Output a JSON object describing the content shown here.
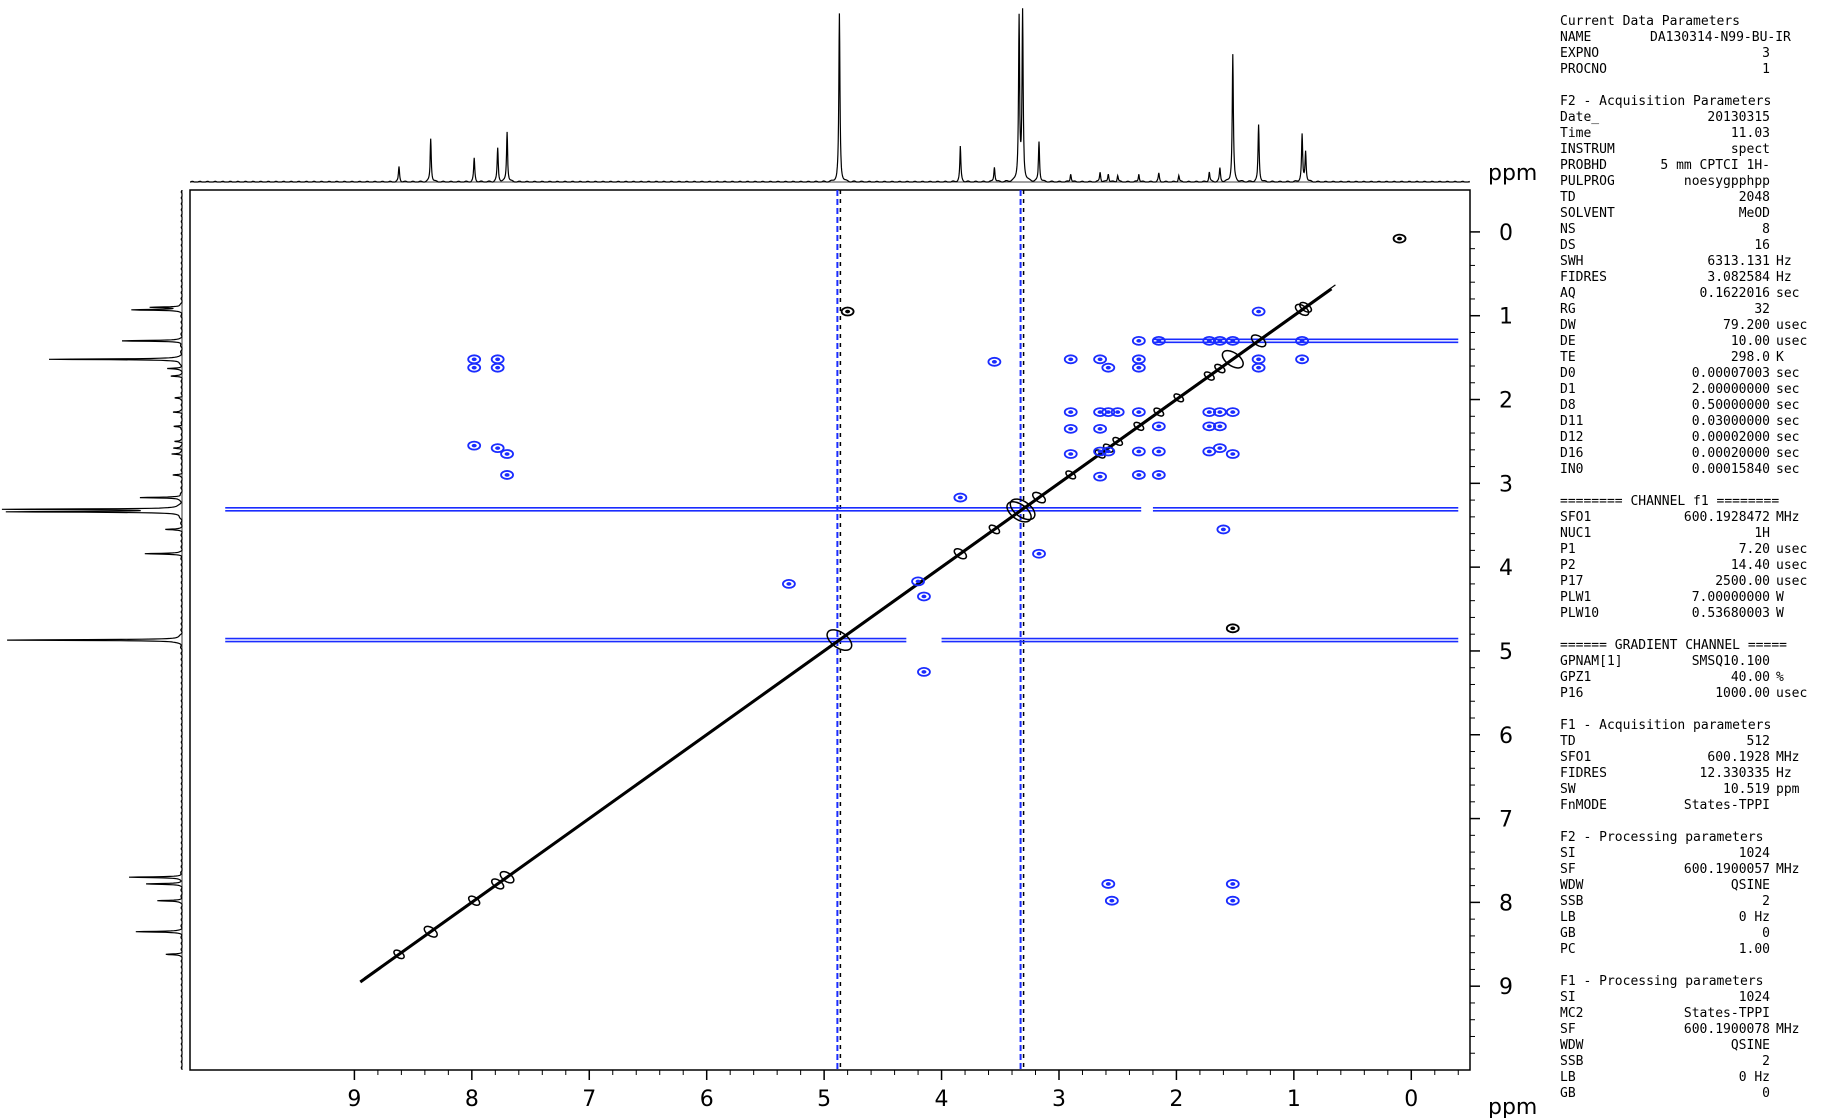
{
  "chart_data": {
    "type": "heatmap",
    "subtype": "2D NMR NOESY contour plot with 1D projections",
    "x_axis": {
      "label": "ppm",
      "range": [
        10.4,
        -0.5
      ],
      "reversed": true,
      "ticks": [
        9,
        8,
        7,
        6,
        5,
        4,
        3,
        2,
        1,
        0
      ]
    },
    "y_axis": {
      "label": "ppm",
      "range": [
        -0.5,
        10.0
      ],
      "reversed": true,
      "ticks": [
        0,
        1,
        2,
        3,
        4,
        5,
        6,
        7,
        8,
        9
      ]
    },
    "colors": {
      "positive": "#000000",
      "negative": "#1a2cff"
    },
    "projection_peaks": [
      {
        "ppm": 8.62,
        "height": 0.09
      },
      {
        "ppm": 8.35,
        "height": 0.26
      },
      {
        "ppm": 7.98,
        "height": 0.14
      },
      {
        "ppm": 7.78,
        "height": 0.2
      },
      {
        "ppm": 7.7,
        "height": 0.3
      },
      {
        "ppm": 4.87,
        "height": 1.0
      },
      {
        "ppm": 3.84,
        "height": 0.21
      },
      {
        "ppm": 3.55,
        "height": 0.09
      },
      {
        "ppm": 3.34,
        "height": 0.97
      },
      {
        "ppm": 3.31,
        "height": 1.0
      },
      {
        "ppm": 3.17,
        "height": 0.24
      },
      {
        "ppm": 2.9,
        "height": 0.05
      },
      {
        "ppm": 2.65,
        "height": 0.06
      },
      {
        "ppm": 2.58,
        "height": 0.05
      },
      {
        "ppm": 2.5,
        "height": 0.04
      },
      {
        "ppm": 2.32,
        "height": 0.05
      },
      {
        "ppm": 2.15,
        "height": 0.05
      },
      {
        "ppm": 1.98,
        "height": 0.04
      },
      {
        "ppm": 1.72,
        "height": 0.06
      },
      {
        "ppm": 1.63,
        "height": 0.08
      },
      {
        "ppm": 1.52,
        "height": 0.76
      },
      {
        "ppm": 1.3,
        "height": 0.34
      },
      {
        "ppm": 0.93,
        "height": 0.28
      },
      {
        "ppm": 0.9,
        "height": 0.18
      }
    ],
    "solvent_lines": [
      {
        "ppm": 4.87,
        "color": "#1a2cff"
      },
      {
        "ppm": 3.31,
        "color": "#1a2cff"
      }
    ],
    "diagonal_range": [
      8.95,
      0.68
    ],
    "cross_peaks": [
      {
        "x": 7.98,
        "y": 1.52,
        "sign": "neg"
      },
      {
        "x": 7.78,
        "y": 1.52,
        "sign": "neg"
      },
      {
        "x": 7.98,
        "y": 1.62,
        "sign": "neg"
      },
      {
        "x": 7.78,
        "y": 1.62,
        "sign": "neg"
      },
      {
        "x": 7.98,
        "y": 2.55,
        "sign": "neg"
      },
      {
        "x": 7.78,
        "y": 2.58,
        "sign": "neg"
      },
      {
        "x": 7.7,
        "y": 2.65,
        "sign": "neg"
      },
      {
        "x": 7.7,
        "y": 2.9,
        "sign": "neg"
      },
      {
        "x": 3.55,
        "y": 1.55,
        "sign": "neg"
      },
      {
        "x": 3.84,
        "y": 3.17,
        "sign": "neg"
      },
      {
        "x": 3.17,
        "y": 3.84,
        "sign": "neg"
      },
      {
        "x": 4.2,
        "y": 4.17,
        "sign": "neg"
      },
      {
        "x": 4.15,
        "y": 4.35,
        "sign": "neg"
      },
      {
        "x": 5.3,
        "y": 4.2,
        "sign": "neg"
      },
      {
        "x": 4.15,
        "y": 5.25,
        "sign": "neg"
      },
      {
        "x": 2.9,
        "y": 1.52,
        "sign": "neg"
      },
      {
        "x": 2.65,
        "y": 1.52,
        "sign": "neg"
      },
      {
        "x": 2.58,
        "y": 1.62,
        "sign": "neg"
      },
      {
        "x": 2.32,
        "y": 1.3,
        "sign": "neg"
      },
      {
        "x": 2.32,
        "y": 1.52,
        "sign": "neg"
      },
      {
        "x": 2.32,
        "y": 1.62,
        "sign": "neg"
      },
      {
        "x": 2.15,
        "y": 1.3,
        "sign": "neg"
      },
      {
        "x": 2.9,
        "y": 2.15,
        "sign": "neg"
      },
      {
        "x": 2.65,
        "y": 2.15,
        "sign": "neg"
      },
      {
        "x": 2.58,
        "y": 2.15,
        "sign": "neg"
      },
      {
        "x": 2.5,
        "y": 2.15,
        "sign": "neg"
      },
      {
        "x": 2.32,
        "y": 2.15,
        "sign": "neg"
      },
      {
        "x": 2.15,
        "y": 2.32,
        "sign": "neg"
      },
      {
        "x": 2.9,
        "y": 2.35,
        "sign": "neg"
      },
      {
        "x": 2.65,
        "y": 2.35,
        "sign": "neg"
      },
      {
        "x": 2.9,
        "y": 2.65,
        "sign": "neg"
      },
      {
        "x": 2.65,
        "y": 2.62,
        "sign": "neg"
      },
      {
        "x": 2.58,
        "y": 2.62,
        "sign": "neg"
      },
      {
        "x": 2.32,
        "y": 2.62,
        "sign": "neg"
      },
      {
        "x": 2.15,
        "y": 2.62,
        "sign": "neg"
      },
      {
        "x": 2.65,
        "y": 2.92,
        "sign": "neg"
      },
      {
        "x": 2.32,
        "y": 2.9,
        "sign": "neg"
      },
      {
        "x": 2.15,
        "y": 2.9,
        "sign": "neg"
      },
      {
        "x": 1.72,
        "y": 1.3,
        "sign": "neg"
      },
      {
        "x": 1.63,
        "y": 1.3,
        "sign": "neg"
      },
      {
        "x": 1.52,
        "y": 1.3,
        "sign": "neg"
      },
      {
        "x": 1.3,
        "y": 0.95,
        "sign": "neg"
      },
      {
        "x": 1.3,
        "y": 1.52,
        "sign": "neg"
      },
      {
        "x": 1.3,
        "y": 1.62,
        "sign": "neg"
      },
      {
        "x": 1.72,
        "y": 2.15,
        "sign": "neg"
      },
      {
        "x": 1.63,
        "y": 2.15,
        "sign": "neg"
      },
      {
        "x": 1.52,
        "y": 2.15,
        "sign": "neg"
      },
      {
        "x": 1.72,
        "y": 2.32,
        "sign": "neg"
      },
      {
        "x": 1.63,
        "y": 2.32,
        "sign": "neg"
      },
      {
        "x": 1.72,
        "y": 2.62,
        "sign": "neg"
      },
      {
        "x": 1.63,
        "y": 2.58,
        "sign": "neg"
      },
      {
        "x": 1.52,
        "y": 2.65,
        "sign": "neg"
      },
      {
        "x": 0.93,
        "y": 1.3,
        "sign": "neg"
      },
      {
        "x": 0.93,
        "y": 1.52,
        "sign": "neg"
      },
      {
        "x": 2.58,
        "y": 7.78,
        "sign": "neg"
      },
      {
        "x": 2.55,
        "y": 7.98,
        "sign": "neg"
      },
      {
        "x": 1.52,
        "y": 7.78,
        "sign": "neg"
      },
      {
        "x": 1.52,
        "y": 7.98,
        "sign": "neg"
      },
      {
        "x": 0.1,
        "y": 0.08,
        "sign": "pos"
      },
      {
        "x": 4.8,
        "y": 0.95,
        "sign": "pos"
      },
      {
        "x": 1.52,
        "y": 4.73,
        "sign": "pos"
      },
      {
        "x": 1.6,
        "y": 3.55,
        "sign": "neg"
      }
    ],
    "row_streaks": [
      {
        "y": 3.31,
        "x_from": 10.1,
        "x_to": 2.3
      },
      {
        "y": 3.31,
        "x_from": 2.2,
        "x_to": -0.4
      },
      {
        "y": 4.87,
        "x_from": 10.1,
        "x_to": 4.3
      },
      {
        "y": 4.87,
        "x_from": 4.0,
        "x_to": -0.4
      },
      {
        "y": 1.3,
        "x_from": 2.2,
        "x_to": -0.4
      }
    ]
  },
  "parameters": [
    {
      "title": "Current Data Parameters",
      "rows": [
        {
          "k": "NAME",
          "v": "DA130314-N99-BU-IR",
          "u": ""
        },
        {
          "k": "EXPNO",
          "v": "3",
          "u": ""
        },
        {
          "k": "PROCNO",
          "v": "1",
          "u": ""
        }
      ]
    },
    {
      "title": "F2 - Acquisition Parameters",
      "rows": [
        {
          "k": "Date_",
          "v": "20130315",
          "u": ""
        },
        {
          "k": "Time",
          "v": "11.03",
          "u": ""
        },
        {
          "k": "INSTRUM",
          "v": "spect",
          "u": ""
        },
        {
          "k": "PROBHD",
          "v": "5 mm CPTCI 1H-",
          "u": ""
        },
        {
          "k": "PULPROG",
          "v": "noesygpphpp",
          "u": ""
        },
        {
          "k": "TD",
          "v": "2048",
          "u": ""
        },
        {
          "k": "SOLVENT",
          "v": "MeOD",
          "u": ""
        },
        {
          "k": "NS",
          "v": "8",
          "u": ""
        },
        {
          "k": "DS",
          "v": "16",
          "u": ""
        },
        {
          "k": "SWH",
          "v": "6313.131",
          "u": "Hz"
        },
        {
          "k": "FIDRES",
          "v": "3.082584",
          "u": "Hz"
        },
        {
          "k": "AQ",
          "v": "0.1622016",
          "u": "sec"
        },
        {
          "k": "RG",
          "v": "32",
          "u": ""
        },
        {
          "k": "DW",
          "v": "79.200",
          "u": "usec"
        },
        {
          "k": "DE",
          "v": "10.00",
          "u": "usec"
        },
        {
          "k": "TE",
          "v": "298.0",
          "u": "K"
        },
        {
          "k": "D0",
          "v": "0.00007003",
          "u": "sec"
        },
        {
          "k": "D1",
          "v": "2.00000000",
          "u": "sec"
        },
        {
          "k": "D8",
          "v": "0.50000000",
          "u": "sec"
        },
        {
          "k": "D11",
          "v": "0.03000000",
          "u": "sec"
        },
        {
          "k": "D12",
          "v": "0.00002000",
          "u": "sec"
        },
        {
          "k": "D16",
          "v": "0.00020000",
          "u": "sec"
        },
        {
          "k": "IN0",
          "v": "0.00015840",
          "u": "sec"
        }
      ]
    },
    {
      "title": "======== CHANNEL f1 ========",
      "rows": [
        {
          "k": "SFO1",
          "v": "600.1928472",
          "u": "MHz"
        },
        {
          "k": "NUC1",
          "v": "1H",
          "u": ""
        },
        {
          "k": "P1",
          "v": "7.20",
          "u": "usec"
        },
        {
          "k": "P2",
          "v": "14.40",
          "u": "usec"
        },
        {
          "k": "P17",
          "v": "2500.00",
          "u": "usec"
        },
        {
          "k": "PLW1",
          "v": "7.00000000",
          "u": "W"
        },
        {
          "k": "PLW10",
          "v": "0.53680003",
          "u": "W"
        }
      ]
    },
    {
      "title": "====== GRADIENT CHANNEL =====",
      "rows": [
        {
          "k": "GPNAM[1]",
          "v": "SMSQ10.100",
          "u": ""
        },
        {
          "k": "GPZ1",
          "v": "40.00",
          "u": "%"
        },
        {
          "k": "P16",
          "v": "1000.00",
          "u": "usec"
        }
      ]
    },
    {
      "title": "F1 - Acquisition parameters",
      "rows": [
        {
          "k": "TD",
          "v": "512",
          "u": ""
        },
        {
          "k": "SFO1",
          "v": "600.1928",
          "u": "MHz"
        },
        {
          "k": "FIDRES",
          "v": "12.330335",
          "u": "Hz"
        },
        {
          "k": "SW",
          "v": "10.519",
          "u": "ppm"
        },
        {
          "k": "FnMODE",
          "v": "States-TPPI",
          "u": ""
        }
      ]
    },
    {
      "title": "F2 - Processing parameters",
      "rows": [
        {
          "k": "SI",
          "v": "1024",
          "u": ""
        },
        {
          "k": "SF",
          "v": "600.1900057",
          "u": "MHz"
        },
        {
          "k": "WDW",
          "v": "QSINE",
          "u": ""
        },
        {
          "k": "SSB",
          "v": "2",
          "u": ""
        },
        {
          "k": "LB",
          "v": "0 Hz",
          "u": ""
        },
        {
          "k": "GB",
          "v": "0",
          "u": ""
        },
        {
          "k": "PC",
          "v": "1.00",
          "u": ""
        }
      ]
    },
    {
      "title": "F1 - Processing parameters",
      "rows": [
        {
          "k": "SI",
          "v": "1024",
          "u": ""
        },
        {
          "k": "MC2",
          "v": "States-TPPI",
          "u": ""
        },
        {
          "k": "SF",
          "v": "600.1900078",
          "u": "MHz"
        },
        {
          "k": "WDW",
          "v": "QSINE",
          "u": ""
        },
        {
          "k": "SSB",
          "v": "2",
          "u": ""
        },
        {
          "k": "LB",
          "v": "0 Hz",
          "u": ""
        },
        {
          "k": "GB",
          "v": "0",
          "u": ""
        }
      ]
    }
  ]
}
